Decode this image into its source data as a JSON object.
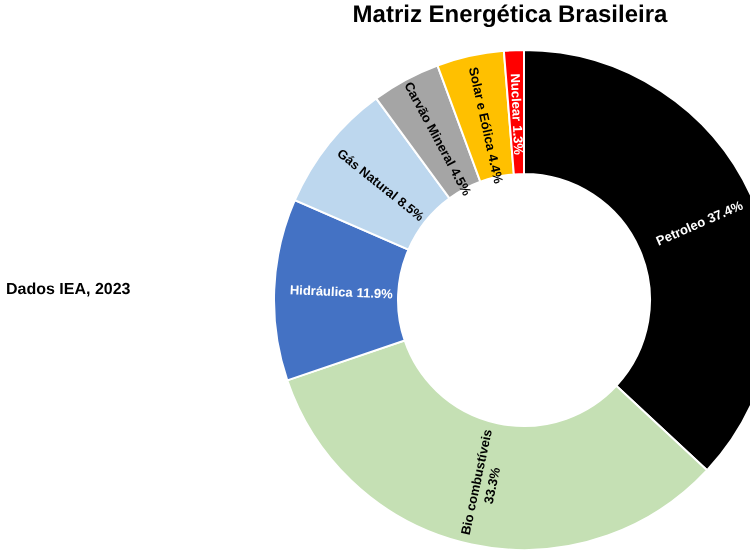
{
  "chart_data": {
    "type": "donut",
    "title": "Matriz Energética Brasileira",
    "annotations": [
      "Dados IEA, 2023"
    ],
    "categories": [
      "Petroleo",
      "Bio combustíveis",
      "Hidráulica",
      "Gás Natural",
      "Carvão Mineral",
      "Solar e Eólica",
      "Nuclear"
    ],
    "values": [
      37.4,
      33.3,
      11.9,
      8.5,
      4.5,
      4.4,
      1.3
    ],
    "colors": [
      "#000000",
      "#c5e0b4",
      "#4472c4",
      "#bdd7ee",
      "#a5a5a5",
      "#ffc000",
      "#ff0000"
    ],
    "value_labels": [
      "37.4%",
      "33.3%",
      "11.9%",
      "8.5%",
      "4.5%",
      "4.4%",
      "1.3%"
    ]
  }
}
